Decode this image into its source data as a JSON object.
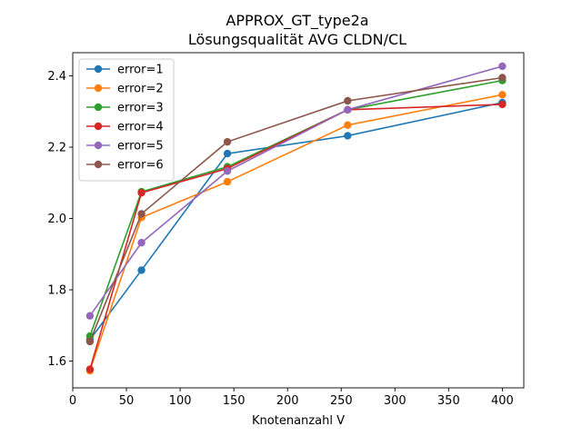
{
  "chart_data": {
    "type": "line",
    "title": "APPROX_GT_type2a",
    "subtitle": "Lösungsqualität AVG CLDN/CL",
    "xlabel": "Knotenanzahl V",
    "ylabel": "",
    "xlim": [
      0,
      420
    ],
    "ylim": [
      1.525,
      2.465
    ],
    "xticks": [
      0,
      50,
      100,
      150,
      200,
      250,
      300,
      350,
      400
    ],
    "yticks": [
      1.6,
      1.8,
      2.0,
      2.2,
      2.4
    ],
    "ytick_labels": [
      "1.6",
      "1.8",
      "2.0",
      "2.2",
      "2.4"
    ],
    "grid": false,
    "legend_position": "top-left",
    "x": [
      16,
      64,
      144,
      256,
      400
    ],
    "series": [
      {
        "name": "error=1",
        "color": "#1f77b4",
        "values": [
          1.66,
          1.855,
          2.182,
          2.232,
          2.325
        ]
      },
      {
        "name": "error=2",
        "color": "#ff7f0e",
        "values": [
          1.573,
          2.003,
          2.103,
          2.262,
          2.347
        ]
      },
      {
        "name": "error=3",
        "color": "#2ca02c",
        "values": [
          1.67,
          2.075,
          2.145,
          2.305,
          2.387
        ]
      },
      {
        "name": "error=4",
        "color": "#d62728",
        "values": [
          1.577,
          2.072,
          2.14,
          2.305,
          2.32
        ]
      },
      {
        "name": "error=5",
        "color": "#9467bd",
        "values": [
          1.727,
          1.932,
          2.133,
          2.305,
          2.427
        ]
      },
      {
        "name": "error=6",
        "color": "#8c564b",
        "values": [
          1.655,
          2.013,
          2.215,
          2.33,
          2.395
        ]
      }
    ]
  }
}
